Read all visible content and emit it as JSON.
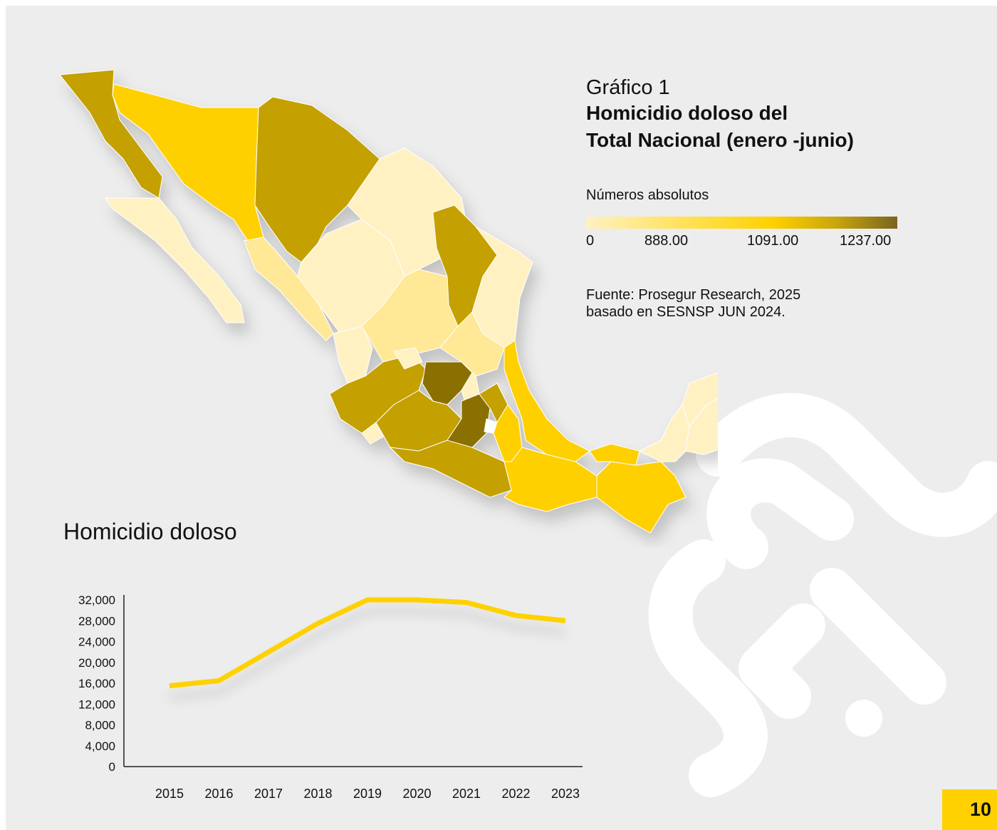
{
  "figure": {
    "label": "Gráfico 1",
    "title_line1": "Homicidio doloso del",
    "title_line2": "Total Nacional (enero -junio)"
  },
  "legend": {
    "title": "Números absolutos",
    "ticks": [
      "0",
      "888.00",
      "1091.00",
      "1237.00"
    ],
    "colors": [
      "#fff1c2",
      "#ffe04d",
      "#ffd000",
      "#c4a000",
      "#7a6420"
    ]
  },
  "source": {
    "line1": "Fuente: Prosegur Research, 2025",
    "line2": "basado en SESNSP JUN 2024."
  },
  "map": {
    "region": "Mexico",
    "state_color_levels": {
      "level1_light": "#fff1c2",
      "level2": "#ffe896",
      "level3_yellow": "#ffd000",
      "level4_olive": "#c4a000",
      "level5_dark": "#8a7000"
    }
  },
  "chart_data": {
    "type": "line",
    "title": "Homicidio doloso",
    "x": [
      "2015",
      "2016",
      "2017",
      "2018",
      "2019",
      "2020",
      "2021",
      "2022",
      "2023"
    ],
    "series": [
      {
        "values": [
          15500,
          16500,
          22000,
          27500,
          32000,
          32000,
          31500,
          29000,
          28000
        ]
      }
    ],
    "yticks": [
      "0",
      "4,000",
      "8,000",
      "12,000",
      "16,000",
      "20,000",
      "24,000",
      "28,000",
      "32,000"
    ],
    "ylim": [
      0,
      32000
    ],
    "line_color": "#ffd100",
    "grid": false
  },
  "page_number": "10"
}
